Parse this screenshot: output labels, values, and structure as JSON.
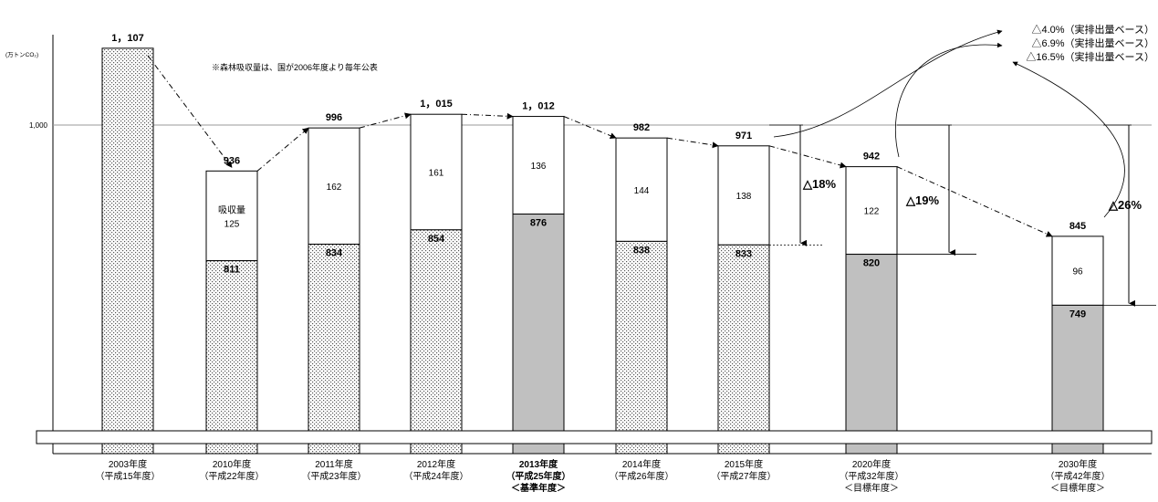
{
  "chart_data": {
    "type": "bar",
    "title": "",
    "unit_label": "(万トンCO₂)",
    "note": "※森林吸収量は、国が2006年度より毎年公表",
    "reference_line": {
      "value": 1000,
      "label": "1,000"
    },
    "categories": [
      {
        "label": "2003年度",
        "sub": "（平成15年度）",
        "extra": "",
        "bold": false
      },
      {
        "label": "2010年度",
        "sub": "（平成22年度）",
        "extra": "",
        "bold": false
      },
      {
        "label": "2011年度",
        "sub": "（平成23年度）",
        "extra": "",
        "bold": false
      },
      {
        "label": "2012年度",
        "sub": "（平成24年度）",
        "extra": "",
        "bold": false
      },
      {
        "label": "2013年度",
        "sub": "（平成25年度）",
        "extra": "＜基準年度＞",
        "bold": true
      },
      {
        "label": "2014年度",
        "sub": "（平成26年度）",
        "extra": "",
        "bold": false
      },
      {
        "label": "2015年度",
        "sub": "（平成27年度）",
        "extra": "",
        "bold": false
      },
      {
        "label": "2020年度",
        "sub": "（平成32年度）",
        "extra": "＜目標年度＞",
        "bold": false
      },
      {
        "label": "2030年度",
        "sub": "（平成42年度）",
        "extra": "＜目標年度＞",
        "bold": false
      }
    ],
    "bars": [
      {
        "total": 1107,
        "total_label": "1，107",
        "base": null,
        "base_label": "",
        "absorption": null,
        "absorption_label": "",
        "absorption_prefix": "",
        "style": "dotted"
      },
      {
        "total": 936,
        "total_label": "936",
        "base": 811,
        "base_label": "811",
        "absorption": 125,
        "absorption_label": "125",
        "absorption_prefix": "吸収量",
        "style": "dotted"
      },
      {
        "total": 996,
        "total_label": "996",
        "base": 834,
        "base_label": "834",
        "absorption": 162,
        "absorption_label": "162",
        "absorption_prefix": "",
        "style": "dotted"
      },
      {
        "total": 1015,
        "total_label": "1，015",
        "base": 854,
        "base_label": "854",
        "absorption": 161,
        "absorption_label": "161",
        "absorption_prefix": "",
        "style": "dotted"
      },
      {
        "total": 1012,
        "total_label": "1，012",
        "base": 876,
        "base_label": "876",
        "absorption": 136,
        "absorption_label": "136",
        "absorption_prefix": "",
        "style": "gray"
      },
      {
        "total": 982,
        "total_label": "982",
        "base": 838,
        "base_label": "838",
        "absorption": 144,
        "absorption_label": "144",
        "absorption_prefix": "",
        "style": "dotted"
      },
      {
        "total": 971,
        "total_label": "971",
        "base": 833,
        "base_label": "833",
        "absorption": 138,
        "absorption_label": "138",
        "absorption_prefix": "",
        "style": "dotted"
      },
      {
        "total": 942,
        "total_label": "942",
        "base": 820,
        "base_label": "820",
        "absorption": 122,
        "absorption_label": "122",
        "absorption_prefix": "",
        "style": "gray"
      },
      {
        "total": 845,
        "total_label": "845",
        "base": 749,
        "base_label": "749",
        "absorption": 96,
        "absorption_label": "96",
        "absorption_prefix": "",
        "style": "gray"
      }
    ],
    "reductions": [
      {
        "bar": 6,
        "label": "△18%"
      },
      {
        "bar": 7,
        "label": "△19%"
      },
      {
        "bar": 8,
        "label": "△26%"
      }
    ],
    "actual_emission_notes": [
      {
        "label": "△4.0%（実排出量ベース）",
        "bar": 6
      },
      {
        "label": "△6.9%（実排出量ベース）",
        "bar": 7
      },
      {
        "label": "△16.5%（実排出量ベース）",
        "bar": 8
      }
    ],
    "colors": {
      "gray_fill": "#c0c0c0",
      "dot_color": "#555555",
      "line": "#000000",
      "ref_line": "#999999"
    }
  }
}
